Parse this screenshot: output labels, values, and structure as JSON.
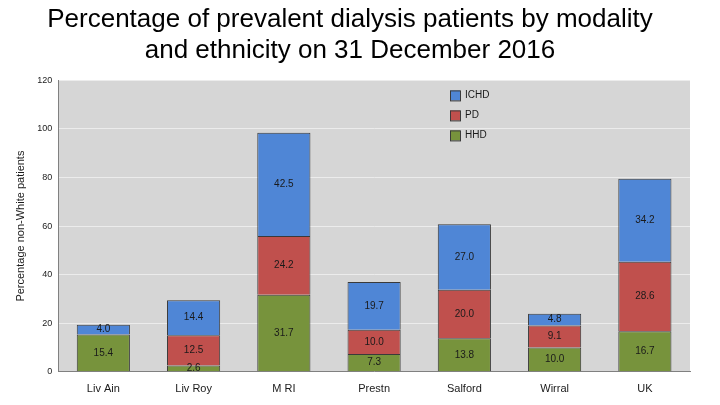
{
  "chart_data": {
    "type": "bar",
    "title": "Percentage of prevalent dialysis patients by modality and ethnicity on 31 December 2016",
    "y_label": "Percentage non-White patients",
    "categories": [
      "Liv Ain",
      "Liv Roy",
      "M RI",
      "Prestn",
      "Salford",
      "Wirral",
      "UK"
    ],
    "series": [
      {
        "name": "ICHD",
        "color": "#4f86d6",
        "values": [
          4.0,
          14.4,
          42.5,
          19.7,
          27.0,
          4.8,
          34.2
        ],
        "value_labels": [
          "4.0",
          "14.4",
          "42.5",
          "19.7",
          "27.0",
          "4.8",
          "34.2"
        ]
      },
      {
        "name": "PD",
        "color": "#c0504d",
        "values": [
          null,
          12.5,
          24.2,
          10.0,
          20.0,
          9.1,
          28.6
        ],
        "value_labels": [
          null,
          "12.5",
          "24.2",
          "10.0",
          "20.0",
          "9.1",
          "28.6"
        ]
      },
      {
        "name": "HHD",
        "color": "#77933c",
        "values": [
          15.4,
          2.6,
          31.7,
          7.3,
          13.8,
          10.0,
          16.7
        ],
        "value_labels": [
          "15.4",
          "2.6",
          "31.7",
          "7.3",
          "13.8",
          "10.0",
          "16.7"
        ]
      }
    ],
    "ylim": [
      0,
      120
    ],
    "yticks": [
      0,
      20,
      40,
      60,
      80,
      100,
      120
    ],
    "stacked": true,
    "grid": true,
    "legend": "top-right",
    "data_labels": true
  }
}
